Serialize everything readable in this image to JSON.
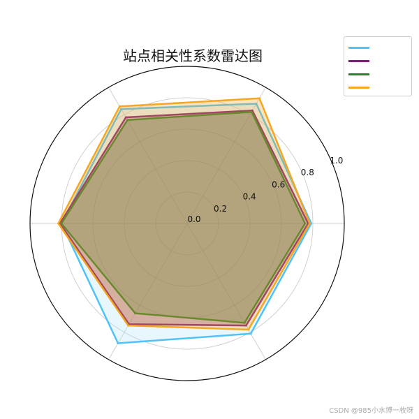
{
  "chart_data": {
    "type": "radar",
    "title": "站点相关性系数雷达图",
    "categories": [
      "",
      "",
      "",
      "",
      "",
      ""
    ],
    "rlim": [
      0,
      1.0
    ],
    "r_ticks": [
      "0.0",
      "0.2",
      "0.4",
      "0.6",
      "0.8",
      "1.0"
    ],
    "grid": true,
    "legend_position": "top-right",
    "series": [
      {
        "color": "#4fc3f7",
        "fill": "#b3e5fc",
        "values": [
          0.79,
          0.88,
          0.84,
          0.8,
          0.88,
          0.81
        ]
      },
      {
        "color": "#7b1f7b",
        "fill": "#7b1f7b",
        "values": [
          0.77,
          0.83,
          0.78,
          0.81,
          0.74,
          0.75
        ]
      },
      {
        "color": "#2e7d32",
        "fill": "#2e7d32",
        "values": [
          0.75,
          0.82,
          0.76,
          0.8,
          0.66,
          0.73
        ]
      },
      {
        "color": "#f5a623",
        "fill": "#f5a623",
        "values": [
          0.78,
          0.92,
          0.86,
          0.82,
          0.75,
          0.78
        ]
      }
    ]
  },
  "watermark": "CSDN @985小水博一枚呀"
}
